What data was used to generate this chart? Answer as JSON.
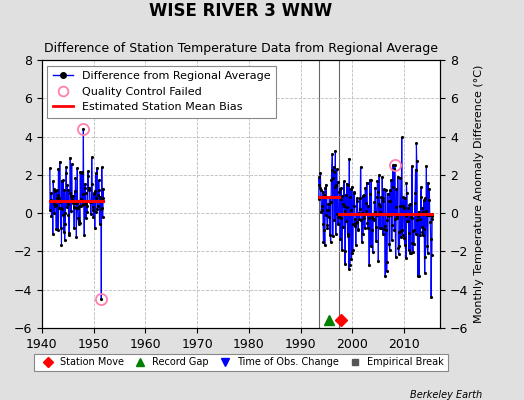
{
  "title": "WISE RIVER 3 WNW",
  "subtitle": "Difference of Station Temperature Data from Regional Average",
  "ylabel": "Monthly Temperature Anomaly Difference (°C)",
  "xlabel_bottom": "Berkeley Earth",
  "ylim": [
    -6,
    8
  ],
  "xlim": [
    1940,
    2017
  ],
  "xticks": [
    1940,
    1950,
    1960,
    1970,
    1980,
    1990,
    2000,
    2010
  ],
  "yticks": [
    -6,
    -4,
    -2,
    0,
    2,
    4,
    6,
    8
  ],
  "background_color": "#e0e0e0",
  "plot_bg_color": "#ffffff",
  "grid_color": "#cccccc",
  "segment1_bias": 0.65,
  "segment1_start": 1941.5,
  "segment1_end": 1951.9,
  "segment2_bias": 0.85,
  "segment2_start": 1993.5,
  "segment2_end": 1997.5,
  "segment3_bias": -0.05,
  "segment3_start": 1997.5,
  "segment3_end": 2015.5,
  "vline1_x": 1993.5,
  "vline2_x": 1997.5,
  "qc_failed_points": [
    [
      1948.0,
      4.4
    ],
    [
      1951.5,
      -4.5
    ],
    [
      2008.2,
      2.5
    ]
  ],
  "station_move_x": 1997.75,
  "station_move_y": -5.6,
  "record_gap_x": 1995.5,
  "record_gap_y": -5.6,
  "title_fontsize": 12,
  "subtitle_fontsize": 9,
  "label_fontsize": 8,
  "tick_fontsize": 9,
  "legend_fontsize": 8
}
